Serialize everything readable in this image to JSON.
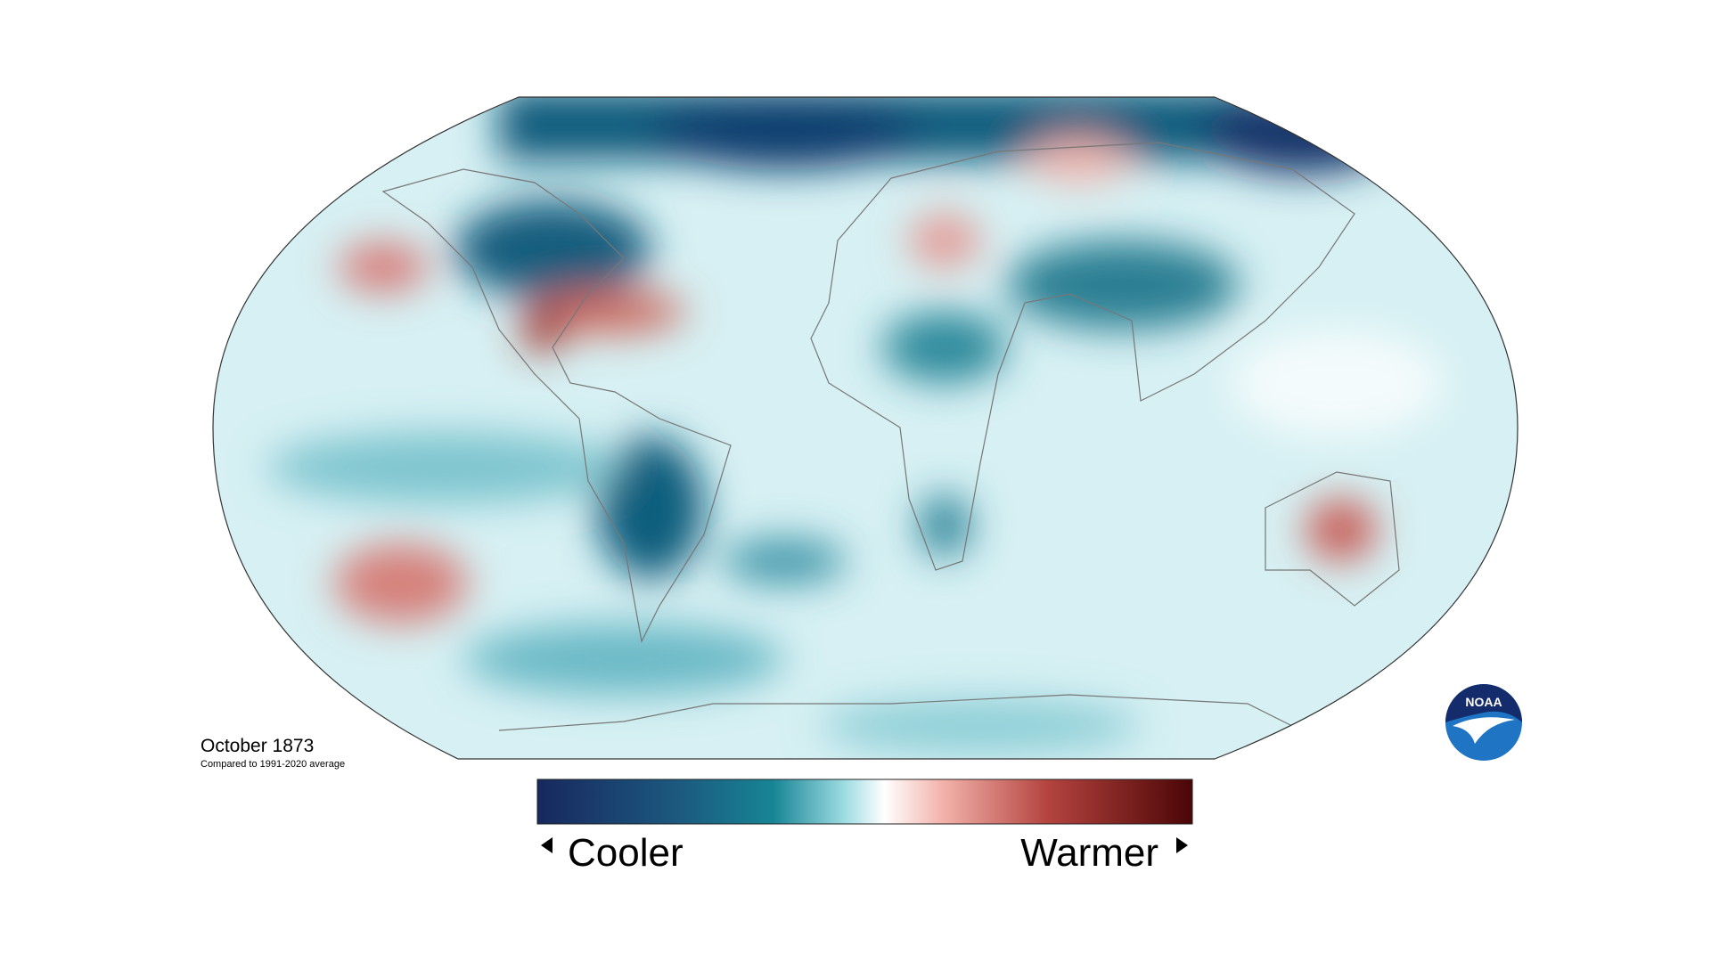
{
  "map": {
    "title": "October 1873",
    "subtitle": "Compared to 1991-2020 average"
  },
  "legend": {
    "low": "Cooler",
    "high": "Warmer"
  },
  "logo": {
    "text": "NOAA"
  }
}
